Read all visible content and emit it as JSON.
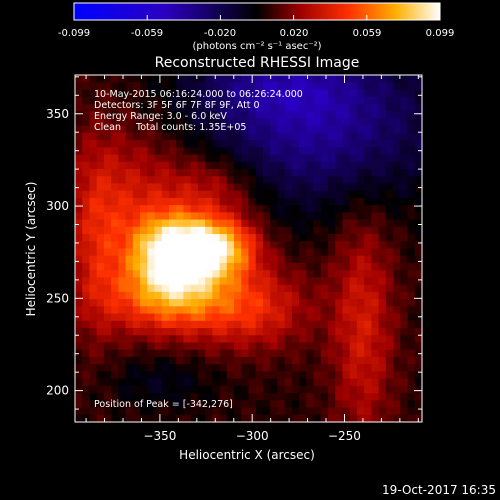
{
  "colorbar": {
    "ticks": [
      "-0.099",
      "-0.059",
      "-0.020",
      "0.020",
      "0.059",
      "0.099"
    ],
    "min": -0.099,
    "max": 0.099
  },
  "units_label": "(photons cm⁻² s⁻¹ asec⁻²)",
  "title": "Reconstructed RHESSI Image",
  "info_lines": [
    "10-May-2015 06:16:24.000 to 06:26:24.000",
    "Detectors: 3F 5F 6F 7F 8F 9F, Att 0",
    "Energy Range: 3.0 - 6.0 keV",
    "Clean     Total counts: 1.35E+05"
  ],
  "peak_label": "Position of Peak = [-342,276]",
  "footer_date": "19-Oct-2017 16:35",
  "chart_data": {
    "type": "heatmap",
    "title": "Reconstructed RHESSI Image",
    "xlabel": "Heliocentric X (arcsec)",
    "ylabel": "Heliocentric Y (arcsec)",
    "xlim": [
      -396,
      -208
    ],
    "ylim": [
      183,
      371
    ],
    "xticks": [
      -350,
      -300,
      -250
    ],
    "yticks": [
      200,
      250,
      300,
      350
    ],
    "colormap": "red-temperature (blue negative, black zero, red-yellow-white positive)",
    "value_range": [
      -0.099,
      0.099
    ],
    "peak": [
      -342,
      276
    ],
    "sources": [
      {
        "x": -340,
        "y": 275,
        "sx": 16,
        "sy": 14,
        "amp": 0.095
      },
      {
        "x": -315,
        "y": 278,
        "sx": 14,
        "sy": 11,
        "amp": 0.055
      },
      {
        "x": -345,
        "y": 250,
        "sx": 24,
        "sy": 14,
        "amp": 0.05
      },
      {
        "x": -300,
        "y": 245,
        "sx": 22,
        "sy": 16,
        "amp": 0.035
      },
      {
        "x": -365,
        "y": 300,
        "sx": 22,
        "sy": 30,
        "amp": 0.03
      },
      {
        "x": -320,
        "y": 310,
        "sx": 18,
        "sy": 14,
        "amp": 0.025
      },
      {
        "x": -240,
        "y": 235,
        "sx": 12,
        "sy": 45,
        "amp": 0.03
      },
      {
        "x": -385,
        "y": 280,
        "sx": 10,
        "sy": 40,
        "amp": 0.02
      },
      {
        "x": -350,
        "y": 205,
        "sx": 20,
        "sy": 10,
        "amp": -0.012
      },
      {
        "x": -265,
        "y": 345,
        "sx": 45,
        "sy": 30,
        "amp": -0.045
      },
      {
        "x": -290,
        "y": 365,
        "sx": 30,
        "sy": 12,
        "amp": -0.02
      }
    ]
  }
}
